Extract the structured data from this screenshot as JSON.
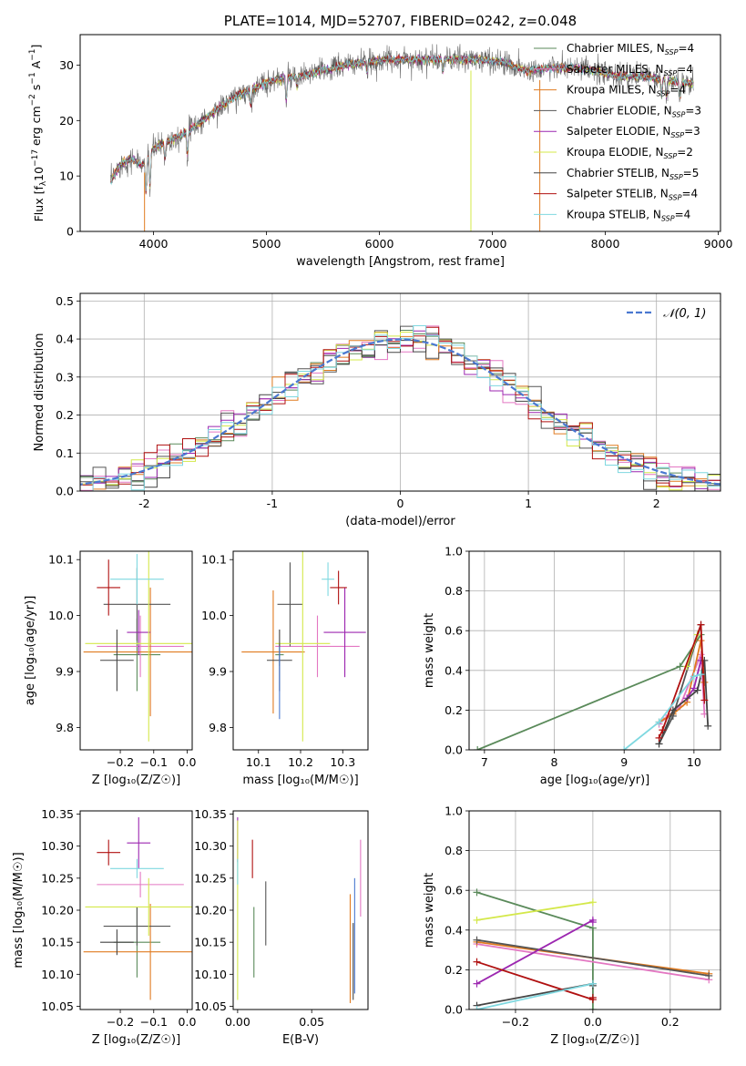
{
  "colors": {
    "chabrier_miles": "#5a8a5a",
    "salpeter_miles": "#e377c2",
    "kroupa_miles": "#e07b20",
    "chabrier_elodie": "#555555",
    "salpeter_elodie": "#9c27b0",
    "kroupa_elodie": "#d4e84a",
    "chabrier_stelib": "#444444",
    "salpeter_stelib": "#b01010",
    "kroupa_stelib": "#7fd8e0",
    "gaussian": "#4a78d0"
  },
  "chart_data": [
    {
      "id": "spectrum",
      "type": "line",
      "title": "PLATE=1014, MJD=52707, FIBERID=0242, z=0.048",
      "xlabel": "wavelength [Angstrom, rest frame]",
      "ylabel_parts": {
        "a": "Flux [f",
        "b": "λ",
        "c": "10",
        "d": "−17",
        "e": " erg cm",
        "f": "−2",
        "g": " s",
        "h": "−1",
        "i": " A",
        "j": "−1",
        "k": "]"
      },
      "xlim": [
        3350,
        9020
      ],
      "ylim": [
        0,
        35.5
      ],
      "xticks": [
        4000,
        5000,
        6000,
        7000,
        8000,
        9000
      ],
      "yticks": [
        0,
        10,
        20,
        30
      ],
      "continuum_points": [
        [
          3620,
          9
        ],
        [
          3700,
          12
        ],
        [
          3800,
          13
        ],
        [
          3900,
          12
        ],
        [
          4000,
          15
        ],
        [
          4100,
          16
        ],
        [
          4300,
          18
        ],
        [
          4500,
          21
        ],
        [
          4700,
          24
        ],
        [
          4900,
          26
        ],
        [
          5100,
          27.5
        ],
        [
          5300,
          28
        ],
        [
          5500,
          29
        ],
        [
          5700,
          30
        ],
        [
          5900,
          30.5
        ],
        [
          6100,
          31
        ],
        [
          6300,
          31
        ],
        [
          6500,
          31
        ],
        [
          6700,
          31
        ],
        [
          6900,
          31
        ],
        [
          7100,
          30.5
        ],
        [
          7300,
          29
        ],
        [
          7500,
          29.5
        ],
        [
          7700,
          29.5
        ],
        [
          7900,
          29
        ],
        [
          8100,
          28
        ],
        [
          8300,
          28
        ],
        [
          8500,
          27.5
        ],
        [
          8780,
          26.5
        ]
      ],
      "absorption_lines": [
        [
          3933,
          6
        ],
        [
          3968,
          6
        ],
        [
          4101,
          3
        ],
        [
          4300,
          4
        ],
        [
          4861,
          3
        ],
        [
          5175,
          4
        ],
        [
          5270,
          2
        ],
        [
          5890,
          2
        ],
        [
          6563,
          2
        ],
        [
          8498,
          3
        ],
        [
          8542,
          3
        ],
        [
          8662,
          3
        ]
      ],
      "legend": [
        {
          "name": "Chabrier MILES, N",
          "sub": "SSP",
          "suffix": "=4",
          "color_key": "chabrier_miles"
        },
        {
          "name": "Salpeter MILES, N",
          "sub": "SSP",
          "suffix": "=4",
          "color_key": "salpeter_miles"
        },
        {
          "name": "Kroupa MILES, N",
          "sub": "SSP",
          "suffix": "=4",
          "color_key": "kroupa_miles"
        },
        {
          "name": "Chabrier ELODIE, N",
          "sub": "SSP",
          "suffix": "=3",
          "color_key": "chabrier_elodie"
        },
        {
          "name": "Salpeter ELODIE, N",
          "sub": "SSP",
          "suffix": "=3",
          "color_key": "salpeter_elodie"
        },
        {
          "name": "Kroupa ELODIE, N",
          "sub": "SSP",
          "suffix": "=2",
          "color_key": "kroupa_elodie"
        },
        {
          "name": "Chabrier STELIB, N",
          "sub": "SSP",
          "suffix": "=5",
          "color_key": "chabrier_stelib"
        },
        {
          "name": "Salpeter STELIB, N",
          "sub": "SSP",
          "suffix": "=4",
          "color_key": "salpeter_stelib"
        },
        {
          "name": "Kroupa STELIB, N",
          "sub": "SSP",
          "suffix": "=4",
          "color_key": "kroupa_stelib"
        }
      ]
    },
    {
      "id": "residuals",
      "type": "histogram",
      "xlabel": "(data-model)/error",
      "ylabel": "Normed distribution",
      "xlim": [
        -2.5,
        2.5
      ],
      "ylim": [
        0,
        0.52
      ],
      "xticks": [
        -2,
        -1,
        0,
        1,
        2
      ],
      "yticks": [
        0.0,
        0.1,
        0.2,
        0.3,
        0.4,
        0.5
      ],
      "bin_width": 0.1,
      "legend": "𝒩(0, 1)",
      "grid": true
    },
    {
      "id": "age_vs_Z",
      "type": "errorbar",
      "xlabel": "Z [log₁₀(Z/Z☉)]",
      "ylabel": "age  [log₁₀(age/yr)]",
      "xlim": [
        -0.32,
        0.015
      ],
      "ylim": [
        9.76,
        10.115
      ],
      "xticks": [
        -0.2,
        -0.1,
        0.0
      ],
      "xticklabels": [
        "−0.2",
        "−0.1",
        "0.0"
      ],
      "yticks": [
        9.8,
        9.9,
        10.0,
        10.1
      ],
      "points": [
        {
          "color_key": "chabrier_miles",
          "x": -0.15,
          "y": 9.93,
          "xerr": 0.07,
          "yerr": 0.065
        },
        {
          "color_key": "salpeter_miles",
          "x": -0.14,
          "y": 9.945,
          "xerr": 0.13,
          "yerr": 0.055
        },
        {
          "color_key": "kroupa_miles",
          "x": -0.11,
          "y": 9.935,
          "xerr": 0.2,
          "yerr": 0.115
        },
        {
          "color_key": "chabrier_elodie",
          "x": -0.15,
          "y": 10.02,
          "xerr": 0.1,
          "yerr": 0.065
        },
        {
          "color_key": "salpeter_elodie",
          "x": -0.145,
          "y": 9.97,
          "xerr": 0.035,
          "yerr": 0.04
        },
        {
          "color_key": "kroupa_elodie",
          "x": -0.115,
          "y": 9.95,
          "xerr": 0.19,
          "yerr": 0.175
        },
        {
          "color_key": "chabrier_stelib",
          "x": -0.21,
          "y": 9.92,
          "xerr": 0.05,
          "yerr": 0.055
        },
        {
          "color_key": "salpeter_stelib",
          "x": -0.235,
          "y": 10.05,
          "xerr": 0.035,
          "yerr": 0.05
        },
        {
          "color_key": "kroupa_stelib",
          "x": -0.15,
          "y": 10.065,
          "xerr": 0.08,
          "yerr": 0.045
        }
      ]
    },
    {
      "id": "age_vs_mass",
      "type": "errorbar",
      "xlabel": "mass [log₁₀(M/M☉)]",
      "ylabel": "",
      "xlim": [
        10.04,
        10.36
      ],
      "ylim": [
        9.76,
        10.115
      ],
      "xticks": [
        10.1,
        10.2,
        10.3
      ],
      "yticks": [
        9.8,
        9.9,
        10.0,
        10.1
      ],
      "points": [
        {
          "color_key": "chabrier_miles",
          "x": 10.15,
          "y": 9.93,
          "xerr": 0.01,
          "yerr": 0.02
        },
        {
          "color_key": "salpeter_miles",
          "x": 10.24,
          "y": 9.945,
          "xerr": 0.1,
          "yerr": 0.055
        },
        {
          "color_key": "kroupa_miles",
          "x": 10.135,
          "y": 9.935,
          "xerr": 0.075,
          "yerr": 0.11
        },
        {
          "color_key": "chabrier_elodie",
          "x": 10.175,
          "y": 10.02,
          "xerr": 0.03,
          "yerr": 0.075
        },
        {
          "color_key": "salpeter_elodie",
          "x": 10.305,
          "y": 9.97,
          "xerr": 0.05,
          "yerr": 0.08
        },
        {
          "color_key": "kroupa_elodie",
          "x": 10.205,
          "y": 9.95,
          "xerr": 0.065,
          "yerr": 0.175
        },
        {
          "color_key": "chabrier_stelib",
          "x": 10.15,
          "y": 9.92,
          "xerr": 0.03,
          "yerr": 0.055
        },
        {
          "color_key": "salpeter_stelib",
          "x": 10.29,
          "y": 10.05,
          "xerr": 0.02,
          "yerr": 0.03
        },
        {
          "color_key": "kroupa_stelib",
          "x": 10.265,
          "y": 10.065,
          "xerr": 0.015,
          "yerr": 0.03
        },
        {
          "color_key": "gaussian",
          "x": 10.15,
          "y": 9.88,
          "xerr": 0.0,
          "yerr": 0.065
        }
      ]
    },
    {
      "id": "weight_vs_age",
      "type": "line",
      "xlabel": "age  [log₁₀(age/yr)]",
      "ylabel": "mass weight",
      "xlim": [
        6.78,
        10.38
      ],
      "ylim": [
        0,
        1.0
      ],
      "xticks": [
        7,
        8,
        9,
        10
      ],
      "yticks": [
        0.0,
        0.2,
        0.4,
        0.6,
        0.8,
        1.0
      ],
      "grid": true,
      "series": [
        {
          "color_key": "chabrier_miles",
          "points": [
            [
              6.9,
              0
            ],
            [
              9.8,
              0.42
            ],
            [
              10.1,
              0.58
            ]
          ]
        },
        {
          "color_key": "salpeter_miles",
          "points": [
            [
              9.5,
              0.13
            ],
            [
              9.6,
              0.16
            ],
            [
              9.8,
              0.22
            ],
            [
              10.1,
              0.48
            ],
            [
              10.15,
              0.18
            ]
          ]
        },
        {
          "color_key": "kroupa_miles",
          "points": [
            [
              9.5,
              0.14
            ],
            [
              9.7,
              0.18
            ],
            [
              9.9,
              0.24
            ],
            [
              10.1,
              0.55
            ],
            [
              10.15,
              0.34
            ]
          ]
        },
        {
          "color_key": "chabrier_elodie",
          "points": [
            [
              9.5,
              0.03
            ],
            [
              9.7,
              0.17
            ],
            [
              10.1,
              0.63
            ]
          ]
        },
        {
          "color_key": "salpeter_elodie",
          "points": [
            [
              9.9,
              0.26
            ],
            [
              10.0,
              0.31
            ],
            [
              10.1,
              0.45
            ]
          ]
        },
        {
          "color_key": "kroupa_elodie",
          "points": [
            [
              9.9,
              0.42
            ],
            [
              10.05,
              0.58
            ]
          ]
        },
        {
          "color_key": "chabrier_stelib",
          "points": [
            [
              9.5,
              0.03
            ],
            [
              9.7,
              0.2
            ],
            [
              10.05,
              0.3
            ],
            [
              10.15,
              0.45
            ],
            [
              10.2,
              0.12
            ]
          ]
        },
        {
          "color_key": "salpeter_stelib",
          "points": [
            [
              9.5,
              0.06
            ],
            [
              9.55,
              0.1
            ],
            [
              10.1,
              0.63
            ],
            [
              10.15,
              0.25
            ]
          ]
        },
        {
          "color_key": "kroupa_stelib",
          "points": [
            [
              9.0,
              0
            ],
            [
              9.5,
              0.14
            ],
            [
              10.0,
              0.37
            ],
            [
              10.1,
              0.38
            ]
          ]
        }
      ]
    },
    {
      "id": "mass_vs_Z",
      "type": "errorbar",
      "xlabel": "Z [log₁₀(Z/Z☉)]",
      "ylabel": "mass [log₁₀(M/M☉)]",
      "xlim": [
        -0.32,
        0.015
      ],
      "ylim": [
        10.045,
        10.355
      ],
      "xticks": [
        -0.2,
        -0.1,
        0.0
      ],
      "xticklabels": [
        "−0.2",
        "−0.1",
        "0.0"
      ],
      "yticks": [
        10.05,
        10.1,
        10.15,
        10.2,
        10.25,
        10.3,
        10.35
      ],
      "points": [
        {
          "color_key": "chabrier_miles",
          "x": -0.15,
          "y": 10.15,
          "xerr": 0.07,
          "yerr": 0.055
        },
        {
          "color_key": "salpeter_miles",
          "x": -0.14,
          "y": 10.24,
          "xerr": 0.13,
          "yerr": 0.02
        },
        {
          "color_key": "kroupa_miles",
          "x": -0.11,
          "y": 10.135,
          "xerr": 0.2,
          "yerr": 0.075
        },
        {
          "color_key": "chabrier_elodie",
          "x": -0.15,
          "y": 10.175,
          "xerr": 0.1,
          "yerr": 0.03
        },
        {
          "color_key": "salpeter_elodie",
          "x": -0.145,
          "y": 10.305,
          "xerr": 0.035,
          "yerr": 0.04
        },
        {
          "color_key": "kroupa_elodie",
          "x": -0.115,
          "y": 10.205,
          "xerr": 0.19,
          "yerr": 0.045
        },
        {
          "color_key": "chabrier_stelib",
          "x": -0.21,
          "y": 10.15,
          "xerr": 0.05,
          "yerr": 0.02
        },
        {
          "color_key": "salpeter_stelib",
          "x": -0.235,
          "y": 10.29,
          "xerr": 0.035,
          "yerr": 0.02
        },
        {
          "color_key": "kroupa_stelib",
          "x": -0.15,
          "y": 10.265,
          "xerr": 0.08,
          "yerr": 0.015
        }
      ]
    },
    {
      "id": "mass_vs_ebv",
      "type": "errorbar",
      "xlabel": "E(B-V)",
      "ylabel": "",
      "xlim": [
        -0.003,
        0.088
      ],
      "ylim": [
        10.045,
        10.355
      ],
      "xticks": [
        0.0,
        0.05
      ],
      "xticklabels": [
        "0.00",
        "0.05"
      ],
      "yticks": [
        10.05,
        10.1,
        10.15,
        10.2,
        10.25,
        10.3,
        10.35
      ],
      "points": [
        {
          "color_key": "chabrier_miles",
          "x": 0.011,
          "y": 10.15,
          "xerr": 0,
          "yerr": 0.055
        },
        {
          "color_key": "salpeter_miles",
          "x": 0.083,
          "y": 10.25,
          "xerr": 0,
          "yerr": 0.06
        },
        {
          "color_key": "kroupa_miles",
          "x": 0.076,
          "y": 10.14,
          "xerr": 0,
          "yerr": 0.085
        },
        {
          "color_key": "chabrier_elodie",
          "x": 0.019,
          "y": 10.195,
          "xerr": 0,
          "yerr": 0.05
        },
        {
          "color_key": "salpeter_elodie",
          "x": 0.0,
          "y": 10.31,
          "xerr": 0,
          "yerr": 0.035
        },
        {
          "color_key": "kroupa_elodie",
          "x": 0.0,
          "y": 10.2,
          "xerr": 0,
          "yerr": 0.14
        },
        {
          "color_key": "chabrier_stelib",
          "x": 0.078,
          "y": 10.12,
          "xerr": 0,
          "yerr": 0.06
        },
        {
          "color_key": "salpeter_stelib",
          "x": 0.01,
          "y": 10.28,
          "xerr": 0,
          "yerr": 0.03
        },
        {
          "color_key": "kroupa_stelib",
          "x": 0.0,
          "y": 10.26,
          "xerr": 0,
          "yerr": 0.02
        },
        {
          "color_key": "gaussian",
          "x": 0.079,
          "y": 10.16,
          "xerr": 0,
          "yerr": 0.09
        }
      ]
    },
    {
      "id": "weight_vs_Z",
      "type": "line",
      "xlabel": "Z [log₁₀(Z/Z☉)]",
      "ylabel": "mass weight",
      "xlim": [
        -0.32,
        0.33
      ],
      "ylim": [
        0,
        1.0
      ],
      "xticks": [
        -0.2,
        0.0,
        0.2
      ],
      "xticklabels": [
        "−0.2",
        "0.0",
        "0.2"
      ],
      "yticks": [
        0.0,
        0.2,
        0.4,
        0.6,
        0.8,
        1.0
      ],
      "grid": true,
      "series": [
        {
          "color_key": "chabrier_miles",
          "points": [
            [
              -0.3,
              0.59
            ],
            [
              0.0,
              0.41
            ],
            [
              0.0,
              0.0
            ]
          ]
        },
        {
          "color_key": "salpeter_miles",
          "points": [
            [
              -0.3,
              0.33
            ],
            [
              0.3,
              0.15
            ]
          ]
        },
        {
          "color_key": "kroupa_miles",
          "points": [
            [
              -0.3,
              0.34
            ],
            [
              0.3,
              0.18
            ]
          ]
        },
        {
          "color_key": "chabrier_elodie",
          "points": [
            [
              -0.3,
              0.35
            ],
            [
              0.3,
              0.17
            ]
          ]
        },
        {
          "color_key": "salpeter_elodie",
          "points": [
            [
              -0.3,
              0.13
            ],
            [
              0.0,
              0.45
            ],
            [
              0.0,
              0.44
            ]
          ]
        },
        {
          "color_key": "kroupa_elodie",
          "points": [
            [
              -0.3,
              0.45
            ],
            [
              0.0,
              0.54
            ]
          ]
        },
        {
          "color_key": "chabrier_stelib",
          "points": [
            [
              -0.3,
              0.02
            ],
            [
              0.0,
              0.13
            ],
            [
              0.0,
              0.12
            ]
          ]
        },
        {
          "color_key": "salpeter_stelib",
          "points": [
            [
              -0.3,
              0.24
            ],
            [
              0.0,
              0.05
            ],
            [
              0.0,
              0.06
            ]
          ]
        },
        {
          "color_key": "kroupa_stelib",
          "points": [
            [
              -0.3,
              0.0
            ],
            [
              0.0,
              0.13
            ]
          ]
        }
      ]
    }
  ]
}
